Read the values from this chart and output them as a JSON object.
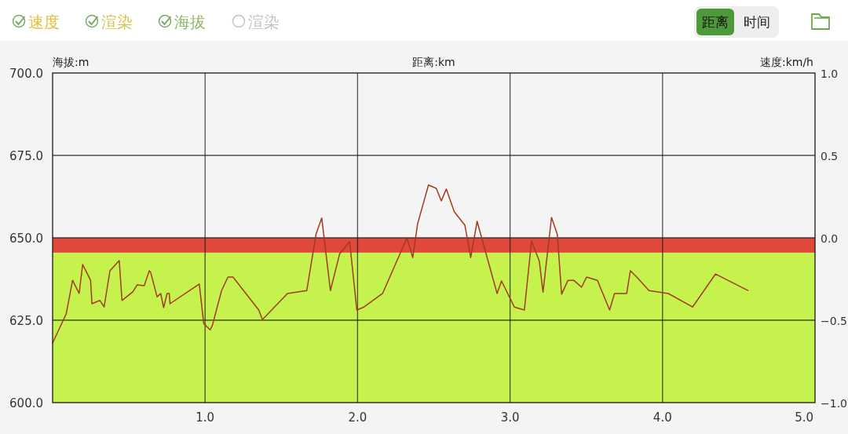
{
  "chart_data": {
    "type": "line",
    "xlabel": "距离:km",
    "ylabel": "海拔:m",
    "y2label": "速度:km/h",
    "annotations": [
      "速度",
      "渲染",
      "海拔",
      "渲染",
      "距离",
      "时间"
    ],
    "x": [
      0,
      0.089,
      0.131,
      0.174,
      0.197,
      0.249,
      0.258,
      0.31,
      0.338,
      0.376,
      0.437,
      0.455,
      0.526,
      0.554,
      0.601,
      0.634,
      0.643,
      0.685,
      0.709,
      0.728,
      0.751,
      0.765,
      0.77,
      0.962,
      0.991,
      1.033,
      1.047,
      1.108,
      1.15,
      1.183,
      1.352,
      1.376,
      1.54,
      1.667,
      1.728,
      1.765,
      1.822,
      1.883,
      1.948,
      1.995,
      2.042,
      2.164,
      2.324,
      2.362,
      2.394,
      2.465,
      2.516,
      2.549,
      2.582,
      2.634,
      2.704,
      2.742,
      2.784,
      2.915,
      2.944,
      3.028,
      3.094,
      3.141,
      3.192,
      3.216,
      3.272,
      3.31,
      3.338,
      3.38,
      3.418,
      3.469,
      3.502,
      3.573,
      3.653,
      3.685,
      3.765,
      3.789,
      3.831,
      3.911,
      4.038,
      4.197,
      4.347,
      4.56
    ],
    "series": [
      {
        "color": "#a23a22",
        "values": [
          618.1,
          626.9,
          637.1,
          633.1,
          641.9,
          637.1,
          630.0,
          631.0,
          629.0,
          640.0,
          643.1,
          631.0,
          633.6,
          635.7,
          635.5,
          640.0,
          639.5,
          632.1,
          633.1,
          628.8,
          633.1,
          633.1,
          630.0,
          636.0,
          624.0,
          622.1,
          623.3,
          634.0,
          638.1,
          638.1,
          628.1,
          625.2,
          633.1,
          634.0,
          651.2,
          656.0,
          634.0,
          645.2,
          648.8,
          628.1,
          629.0,
          633.1,
          650.0,
          644.0,
          654.3,
          666.0,
          665.0,
          661.2,
          664.8,
          657.9,
          653.8,
          644.0,
          655.0,
          633.1,
          636.9,
          629.0,
          628.1,
          649.0,
          642.9,
          633.5,
          656.2,
          651.0,
          632.9,
          637.1,
          637.1,
          635.0,
          638.1,
          637.1,
          628.1,
          633.1,
          633.1,
          640.0,
          638.1,
          634.0,
          633.1,
          629.0,
          639.0,
          634.0
        ]
      }
    ],
    "bands": [
      {
        "axis": "y2",
        "from": -1.0,
        "to": -0.09,
        "color": "#c6f24e"
      },
      {
        "axis": "y2",
        "from": -0.09,
        "to": 0.0,
        "color": "#e0483c"
      }
    ],
    "xlim": [
      0,
      5.0
    ],
    "xticks": [
      {
        "value": 1,
        "label": "1.0"
      },
      {
        "value": 2,
        "label": "2.0"
      },
      {
        "value": 3,
        "label": "3.0"
      },
      {
        "value": 4,
        "label": "4.0"
      },
      {
        "value": 5,
        "label": "5.0"
      }
    ],
    "ylim": [
      600,
      700
    ],
    "yticks": [
      {
        "value": 600,
        "label": "600.0"
      },
      {
        "value": 625,
        "label": "625.0"
      },
      {
        "value": 650,
        "label": "650.0"
      },
      {
        "value": 675,
        "label": "675.0"
      },
      {
        "value": 700,
        "label": "700.0"
      }
    ],
    "y2lim": [
      -1.0,
      1.0
    ],
    "y2ticks": [
      {
        "value": -1.0,
        "label": "−1.0"
      },
      {
        "value": -0.5,
        "label": "−0.5"
      },
      {
        "value": 0,
        "label": "0.0"
      },
      {
        "value": 0.5,
        "label": "0.5"
      },
      {
        "value": 1.0,
        "label": "1.0"
      }
    ],
    "grid": true
  }
}
